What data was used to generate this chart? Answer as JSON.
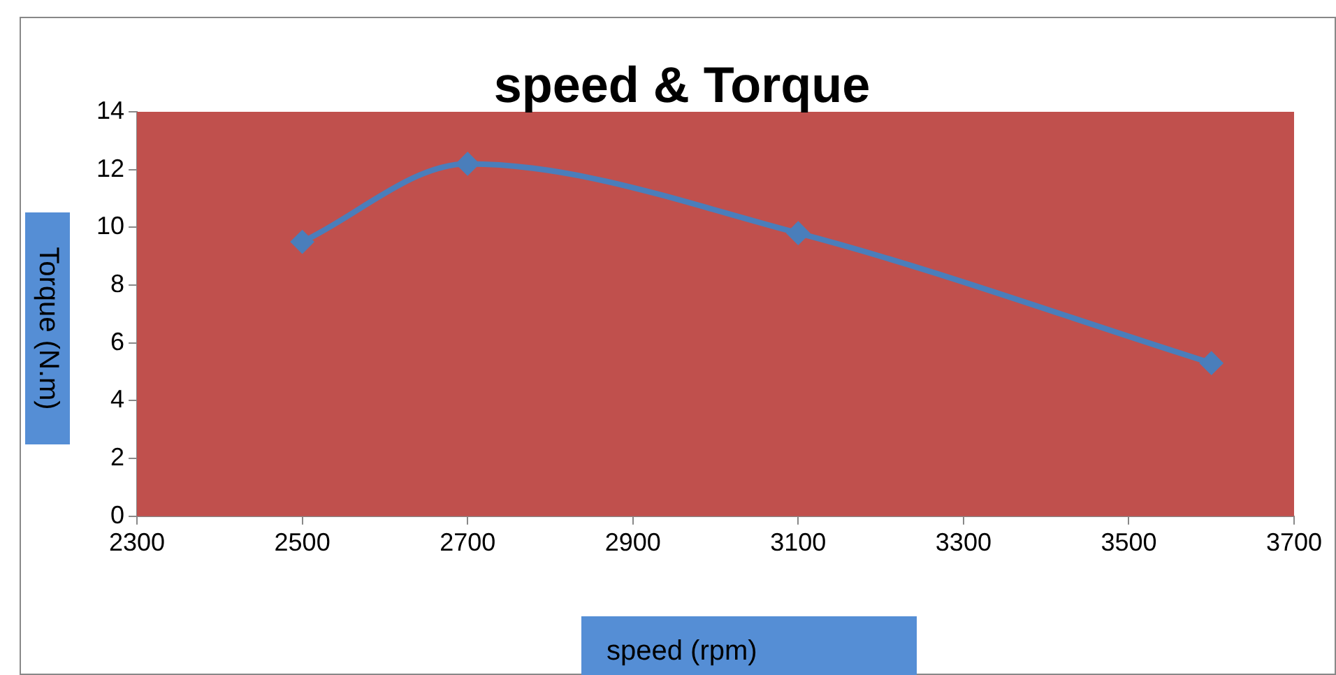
{
  "chart_data": {
    "type": "line",
    "title": "speed & Torque",
    "xlabel": "speed (rpm)",
    "ylabel": "Torque (N.m)",
    "x": [
      2500,
      2700,
      3100,
      3600
    ],
    "series": [
      {
        "color": "#4a7ebb",
        "values": [
          9.5,
          12.2,
          9.8,
          5.3
        ]
      }
    ],
    "xlim": [
      2300,
      3700
    ],
    "xticks": [
      2300,
      2500,
      2700,
      2900,
      3100,
      3300,
      3500,
      3700
    ],
    "ylim": [
      0,
      14
    ],
    "yticks": [
      0,
      2,
      4,
      6,
      8,
      10,
      12,
      14
    ],
    "grid": false,
    "legend": false,
    "marker": "diamond",
    "line_style": "solid"
  }
}
